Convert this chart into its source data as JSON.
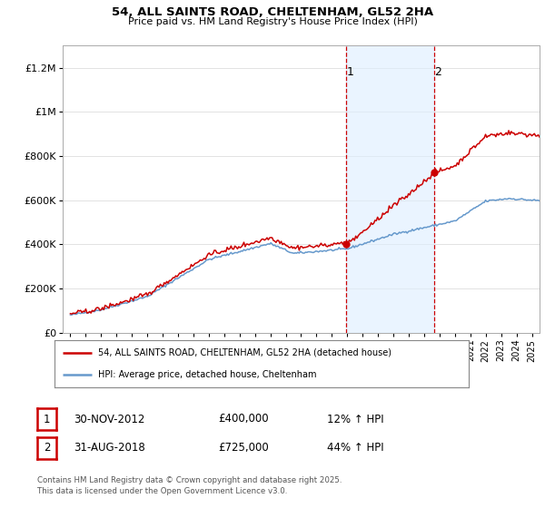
{
  "title": "54, ALL SAINTS ROAD, CHELTENHAM, GL52 2HA",
  "subtitle": "Price paid vs. HM Land Registry's House Price Index (HPI)",
  "legend_line1": "54, ALL SAINTS ROAD, CHELTENHAM, GL52 2HA (detached house)",
  "legend_line2": "HPI: Average price, detached house, Cheltenham",
  "footnote": "Contains HM Land Registry data © Crown copyright and database right 2025.\nThis data is licensed under the Open Government Licence v3.0.",
  "annotation1_label": "1",
  "annotation1_date": "30-NOV-2012",
  "annotation1_price": "£400,000",
  "annotation1_hpi": "12% ↑ HPI",
  "annotation2_label": "2",
  "annotation2_date": "31-AUG-2018",
  "annotation2_price": "£725,000",
  "annotation2_hpi": "44% ↑ HPI",
  "price_color": "#cc0000",
  "hpi_color": "#6699cc",
  "shade_color": "#ddeeff",
  "annotation_vline_color": "#cc0000",
  "ylim": [
    0,
    1300000
  ],
  "yticks": [
    0,
    200000,
    400000,
    600000,
    800000,
    1000000,
    1200000
  ],
  "ytick_labels": [
    "£0",
    "£200K",
    "£400K",
    "£600K",
    "£800K",
    "£1M",
    "£1.2M"
  ],
  "background_color": "#ffffff",
  "grid_color": "#dddddd",
  "purchase1_x": 2012.917,
  "purchase1_y": 400000,
  "purchase2_x": 2018.667,
  "purchase2_y": 725000,
  "xlim": [
    1994.5,
    2025.5
  ]
}
